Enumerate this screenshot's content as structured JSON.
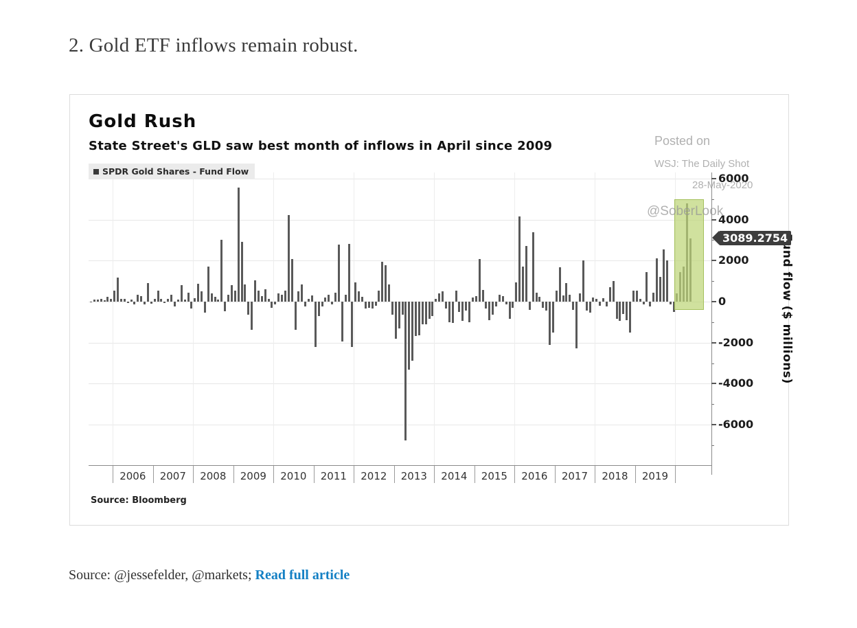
{
  "page": {
    "heading": "2. Gold ETF inflows remain robust.",
    "footer": {
      "prefix": "Source: @jessefelder, @markets; ",
      "link_label": "Read full article"
    }
  },
  "watermark": {
    "line1": "Posted on",
    "line2": "WSJ: The Daily Shot",
    "line3": "28-May-2020",
    "handle": "@SoberLook"
  },
  "chart_data": {
    "type": "bar",
    "title": "Gold Rush",
    "subtitle": "State Street's GLD saw best month of inflows in April since 2009",
    "legend": "SPDR Gold Shares - Fund Flow",
    "ylabel": "Fund flow ($ millions)",
    "source": "Source: Bloomberg",
    "last_value_label": "3089.2754",
    "last_value": 3089.2754,
    "bar_color": "#595959",
    "highlight_color": "#bed678",
    "ylim": [
      -7950,
      6300
    ],
    "yticks_major": [
      6000,
      4000,
      2000,
      0,
      -2000,
      -4000,
      -6000
    ],
    "yticks_minor": [
      5000,
      3000,
      1000,
      -1000,
      -3000,
      -5000,
      -7000
    ],
    "grid_vertical_years": [
      2006,
      2008,
      2010,
      2012,
      2014,
      2016,
      2018,
      2020
    ],
    "year_labels": [
      "2006",
      "2007",
      "2008",
      "2009",
      "2010",
      "2011",
      "2012",
      "2013",
      "2014",
      "2015",
      "2016",
      "2017",
      "2018",
      "2019"
    ],
    "highlight_range": [
      "2020-01",
      "2020-05"
    ],
    "monthly_values": [
      [
        "2005-06",
        -50
      ],
      [
        "2005-07",
        90
      ],
      [
        "2005-08",
        100
      ],
      [
        "2005-09",
        130
      ],
      [
        "2005-10",
        60
      ],
      [
        "2005-11",
        230
      ],
      [
        "2005-12",
        150
      ],
      [
        "2006-01",
        540
      ],
      [
        "2006-02",
        1180
      ],
      [
        "2006-03",
        150
      ],
      [
        "2006-04",
        140
      ],
      [
        "2006-05",
        -80
      ],
      [
        "2006-06",
        100
      ],
      [
        "2006-07",
        -150
      ],
      [
        "2006-08",
        340
      ],
      [
        "2006-09",
        280
      ],
      [
        "2006-10",
        -120
      ],
      [
        "2006-11",
        900
      ],
      [
        "2006-12",
        -100
      ],
      [
        "2007-01",
        130
      ],
      [
        "2007-02",
        520
      ],
      [
        "2007-03",
        130
      ],
      [
        "2007-04",
        -60
      ],
      [
        "2007-05",
        130
      ],
      [
        "2007-06",
        340
      ],
      [
        "2007-07",
        -230
      ],
      [
        "2007-08",
        90
      ],
      [
        "2007-09",
        820
      ],
      [
        "2007-10",
        90
      ],
      [
        "2007-11",
        450
      ],
      [
        "2007-12",
        -340
      ],
      [
        "2008-01",
        180
      ],
      [
        "2008-02",
        880
      ],
      [
        "2008-03",
        500
      ],
      [
        "2008-04",
        -540
      ],
      [
        "2008-05",
        1720
      ],
      [
        "2008-06",
        400
      ],
      [
        "2008-07",
        230
      ],
      [
        "2008-08",
        90
      ],
      [
        "2008-09",
        3000
      ],
      [
        "2008-10",
        -480
      ],
      [
        "2008-11",
        350
      ],
      [
        "2008-12",
        800
      ],
      [
        "2009-01",
        550
      ],
      [
        "2009-02",
        5550
      ],
      [
        "2009-03",
        2900
      ],
      [
        "2009-04",
        850
      ],
      [
        "2009-05",
        -620
      ],
      [
        "2009-06",
        -1390
      ],
      [
        "2009-07",
        1050
      ],
      [
        "2009-08",
        550
      ],
      [
        "2009-09",
        280
      ],
      [
        "2009-10",
        600
      ],
      [
        "2009-11",
        150
      ],
      [
        "2009-12",
        -300
      ],
      [
        "2010-01",
        -150
      ],
      [
        "2010-02",
        400
      ],
      [
        "2010-03",
        350
      ],
      [
        "2010-04",
        550
      ],
      [
        "2010-05",
        4220
      ],
      [
        "2010-06",
        2080
      ],
      [
        "2010-07",
        -1390
      ],
      [
        "2010-08",
        500
      ],
      [
        "2010-09",
        830
      ],
      [
        "2010-10",
        -250
      ],
      [
        "2010-11",
        150
      ],
      [
        "2010-12",
        300
      ],
      [
        "2011-01",
        -2220
      ],
      [
        "2011-02",
        -700
      ],
      [
        "2011-03",
        -250
      ],
      [
        "2011-04",
        200
      ],
      [
        "2011-05",
        350
      ],
      [
        "2011-06",
        -150
      ],
      [
        "2011-07",
        450
      ],
      [
        "2011-08",
        2780
      ],
      [
        "2011-09",
        -1940
      ],
      [
        "2011-10",
        350
      ],
      [
        "2011-11",
        2800
      ],
      [
        "2011-12",
        -2220
      ],
      [
        "2012-01",
        940
      ],
      [
        "2012-02",
        500
      ],
      [
        "2012-03",
        250
      ],
      [
        "2012-04",
        -350
      ],
      [
        "2012-05",
        -300
      ],
      [
        "2012-06",
        -350
      ],
      [
        "2012-07",
        -200
      ],
      [
        "2012-08",
        550
      ],
      [
        "2012-09",
        1940
      ],
      [
        "2012-10",
        1780
      ],
      [
        "2012-11",
        830
      ],
      [
        "2012-12",
        -650
      ],
      [
        "2013-01",
        -1800
      ],
      [
        "2013-02",
        -1300
      ],
      [
        "2013-03",
        -650
      ],
      [
        "2013-04",
        -6760
      ],
      [
        "2013-05",
        -3300
      ],
      [
        "2013-06",
        -2890
      ],
      [
        "2013-07",
        -1670
      ],
      [
        "2013-08",
        -1650
      ],
      [
        "2013-09",
        -1100
      ],
      [
        "2013-10",
        -1100
      ],
      [
        "2013-11",
        -850
      ],
      [
        "2013-12",
        -700
      ],
      [
        "2014-01",
        150
      ],
      [
        "2014-02",
        390
      ],
      [
        "2014-03",
        500
      ],
      [
        "2014-04",
        -350
      ],
      [
        "2014-05",
        -1000
      ],
      [
        "2014-06",
        -1050
      ],
      [
        "2014-07",
        550
      ],
      [
        "2014-08",
        -500
      ],
      [
        "2014-09",
        -940
      ],
      [
        "2014-10",
        -450
      ],
      [
        "2014-11",
        -1000
      ],
      [
        "2014-12",
        200
      ],
      [
        "2015-01",
        280
      ],
      [
        "2015-02",
        2080
      ],
      [
        "2015-03",
        560
      ],
      [
        "2015-04",
        -350
      ],
      [
        "2015-05",
        -890
      ],
      [
        "2015-06",
        -650
      ],
      [
        "2015-07",
        -250
      ],
      [
        "2015-08",
        330
      ],
      [
        "2015-09",
        280
      ],
      [
        "2015-10",
        -150
      ],
      [
        "2015-11",
        -850
      ],
      [
        "2015-12",
        -300
      ],
      [
        "2016-01",
        940
      ],
      [
        "2016-02",
        4160
      ],
      [
        "2016-03",
        1720
      ],
      [
        "2016-04",
        2720
      ],
      [
        "2016-05",
        -400
      ],
      [
        "2016-06",
        3390
      ],
      [
        "2016-07",
        440
      ],
      [
        "2016-08",
        220
      ],
      [
        "2016-09",
        -300
      ],
      [
        "2016-10",
        -450
      ],
      [
        "2016-11",
        -2110
      ],
      [
        "2016-12",
        -1500
      ],
      [
        "2017-01",
        550
      ],
      [
        "2017-02",
        1670
      ],
      [
        "2017-03",
        300
      ],
      [
        "2017-04",
        890
      ],
      [
        "2017-05",
        350
      ],
      [
        "2017-06",
        -400
      ],
      [
        "2017-07",
        -2290
      ],
      [
        "2017-08",
        400
      ],
      [
        "2017-09",
        2010
      ],
      [
        "2017-10",
        -450
      ],
      [
        "2017-11",
        -550
      ],
      [
        "2017-12",
        200
      ],
      [
        "2018-01",
        150
      ],
      [
        "2018-02",
        -200
      ],
      [
        "2018-03",
        160
      ],
      [
        "2018-04",
        -250
      ],
      [
        "2018-05",
        720
      ],
      [
        "2018-06",
        1000
      ],
      [
        "2018-07",
        -830
      ],
      [
        "2018-08",
        -940
      ],
      [
        "2018-09",
        -600
      ],
      [
        "2018-10",
        -890
      ],
      [
        "2018-11",
        -1500
      ],
      [
        "2018-12",
        550
      ],
      [
        "2019-01",
        550
      ],
      [
        "2019-02",
        150
      ],
      [
        "2019-03",
        -150
      ],
      [
        "2019-04",
        1440
      ],
      [
        "2019-05",
        -250
      ],
      [
        "2019-06",
        450
      ],
      [
        "2019-07",
        2110
      ],
      [
        "2019-08",
        1220
      ],
      [
        "2019-09",
        2560
      ],
      [
        "2019-10",
        2000
      ],
      [
        "2019-11",
        -150
      ],
      [
        "2019-12",
        -500
      ],
      [
        "2020-01",
        390
      ],
      [
        "2020-02",
        1440
      ],
      [
        "2020-03",
        1720
      ],
      [
        "2020-04",
        4780
      ],
      [
        "2020-05",
        3089.2754
      ]
    ]
  }
}
